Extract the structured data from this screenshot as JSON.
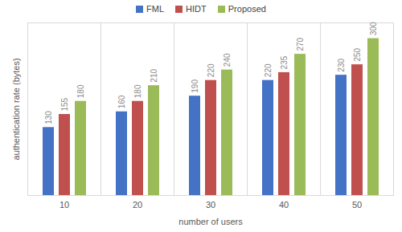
{
  "chart_data": {
    "type": "bar",
    "categories": [
      "10",
      "20",
      "30",
      "40",
      "50"
    ],
    "series": [
      {
        "name": "FML",
        "color": "#4472c4",
        "values": [
          130,
          160,
          190,
          220,
          230
        ]
      },
      {
        "name": "HIDT",
        "color": "#c0504d",
        "values": [
          155,
          180,
          220,
          235,
          250
        ]
      },
      {
        "name": "Proposed",
        "color": "#9bbb59",
        "values": [
          180,
          210,
          240,
          270,
          300
        ]
      }
    ],
    "x_label": "number of users",
    "y_label": "authentication rate (bytes)",
    "ylim": [
      0,
      330
    ],
    "yticks": [],
    "legend": "top",
    "data_labels": true,
    "tick_labels": "x"
  }
}
